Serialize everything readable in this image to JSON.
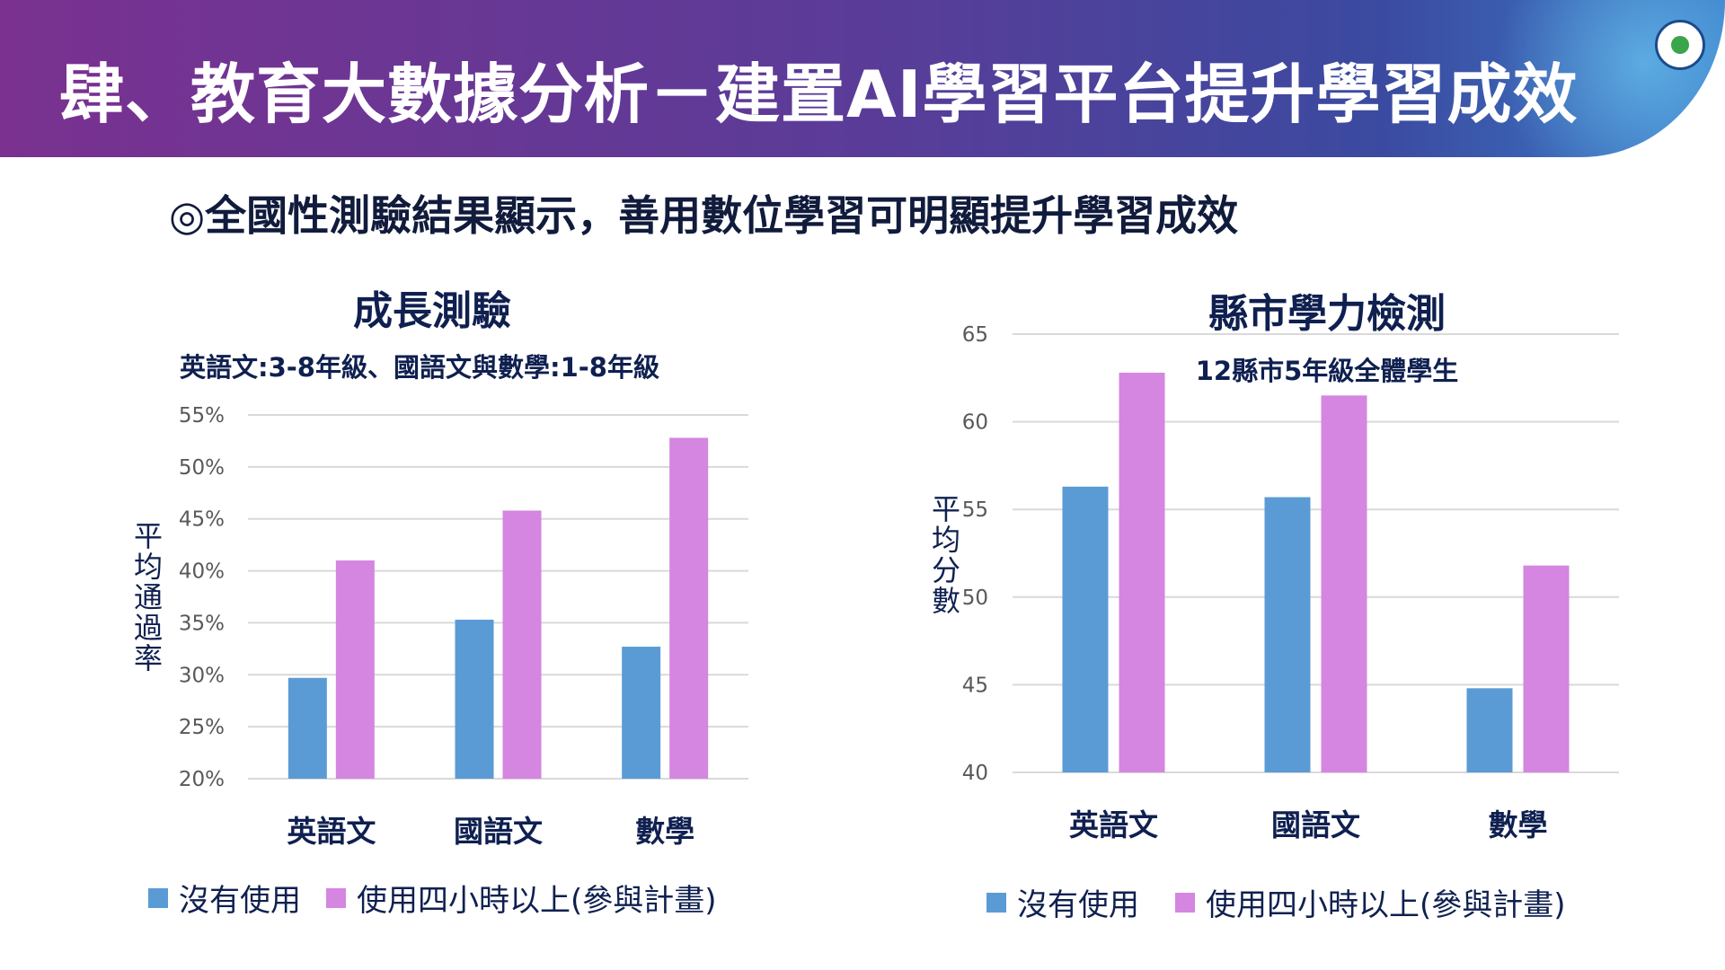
{
  "header": {
    "title": "肆、教育大數據分析－建置AI學習平台提升學習成效"
  },
  "subtitle": "◎全國性測驗結果顯示，善用數位學習可明顯提升學習成效",
  "colors": {
    "no_use": "#5B9BD5",
    "use": "#D486E0"
  },
  "chart_data": [
    {
      "type": "bar",
      "title": "成長測驗",
      "subtitle": "英語文:3-8年級、國語文與數學:1-8年級",
      "ylabel": "平均通過率",
      "categories": [
        "英語文",
        "國語文",
        "數學"
      ],
      "ylim": [
        20,
        55
      ],
      "yticks": [
        20,
        25,
        30,
        35,
        40,
        45,
        50,
        55
      ],
      "tick_suffix": "%",
      "series": [
        {
          "name": "沒有使用",
          "values": [
            29.7,
            35.3,
            32.7
          ]
        },
        {
          "name": "使用四小時以上(參與計畫)",
          "values": [
            41.0,
            45.8,
            52.8
          ]
        }
      ],
      "legend": "bottom",
      "grid": true
    },
    {
      "type": "bar",
      "title": "縣市學力檢測",
      "subtitle": "12縣市5年級全體學生",
      "ylabel": "平均分數",
      "categories": [
        "英語文",
        "國語文",
        "數學"
      ],
      "ylim": [
        40,
        65
      ],
      "yticks": [
        40,
        45,
        50,
        55,
        60,
        65
      ],
      "tick_suffix": "",
      "series": [
        {
          "name": "沒有使用",
          "values": [
            56.3,
            55.7,
            44.8
          ]
        },
        {
          "name": "使用四小時以上(參與計畫)",
          "values": [
            62.8,
            61.5,
            51.8
          ]
        }
      ],
      "legend": "bottom",
      "grid": true
    }
  ]
}
